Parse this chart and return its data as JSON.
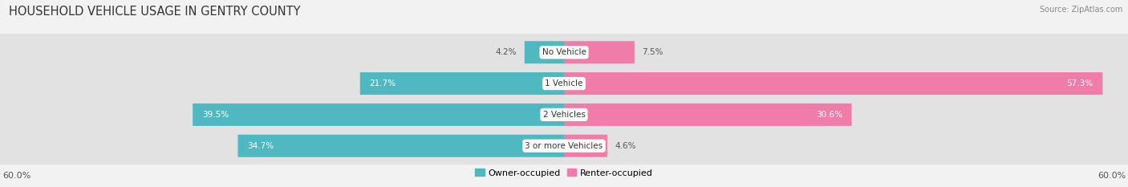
{
  "title": "HOUSEHOLD VEHICLE USAGE IN GENTRY COUNTY",
  "source": "Source: ZipAtlas.com",
  "categories": [
    "No Vehicle",
    "1 Vehicle",
    "2 Vehicles",
    "3 or more Vehicles"
  ],
  "owner_values": [
    4.2,
    21.7,
    39.5,
    34.7
  ],
  "renter_values": [
    7.5,
    57.3,
    30.6,
    4.6
  ],
  "owner_color": "#50b8c1",
  "renter_color": "#f07caa",
  "axis_max": 60.0,
  "axis_label_left": "60.0%",
  "axis_label_right": "60.0%",
  "bar_height": 0.72,
  "background_color": "#f2f2f2",
  "bar_bg_color": "#e2e2e2",
  "label_color_dark": "#555555",
  "label_color_light": "#ffffff",
  "title_fontsize": 10.5,
  "source_fontsize": 7,
  "tick_fontsize": 8,
  "bar_label_fontsize": 7.5,
  "category_fontsize": 7.5,
  "legend_fontsize": 8
}
